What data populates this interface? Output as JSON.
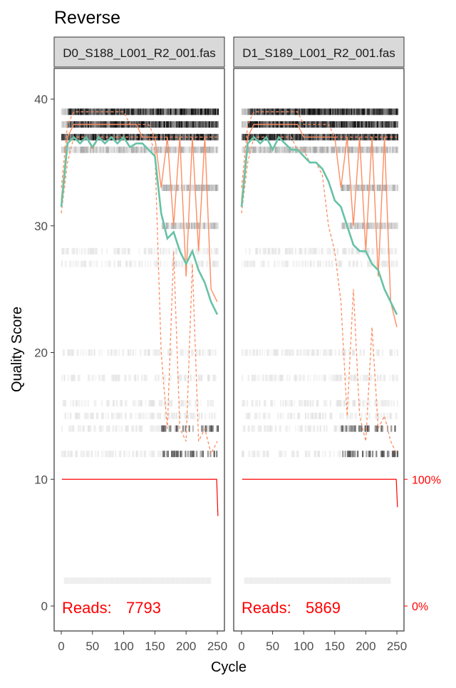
{
  "chart_data": {
    "type": "line",
    "title": "Reverse",
    "xlabel": "Cycle",
    "ylabel": "Quality Score",
    "xlim": [
      -5,
      256
    ],
    "ylim": [
      -1.5,
      43
    ],
    "x_ticks": [
      "0",
      "50",
      "100",
      "150",
      "200",
      "250"
    ],
    "y_ticks": [
      "0",
      "10",
      "20",
      "30",
      "40"
    ],
    "right_axis_ticks": [
      "0%",
      "100%"
    ],
    "grid": false,
    "colors": {
      "mean": "#66c2a5",
      "quartiles": "#fc8d62",
      "coverage": "#ff0000",
      "reads_text": "#ff0000"
    },
    "x": [
      0,
      10,
      20,
      30,
      40,
      50,
      60,
      70,
      80,
      90,
      100,
      110,
      120,
      130,
      140,
      150,
      160,
      170,
      180,
      190,
      200,
      210,
      220,
      230,
      240,
      250
    ],
    "panels": [
      {
        "strip": "D0_S188_L001_R2_001.fas",
        "reads_label": "Reads:",
        "reads": "7793",
        "coverage_end_fraction": 0.71,
        "series": [
          {
            "name": "mean",
            "values": [
              31.5,
              36.5,
              37,
              36.5,
              37,
              36.2,
              37,
              36.5,
              37,
              36.5,
              37,
              36.2,
              36.5,
              36.5,
              36,
              35.5,
              31,
              29,
              29.5,
              28,
              27,
              28,
              26.5,
              25.5,
              24,
              23
            ]
          },
          {
            "name": "median",
            "values": [
              32,
              37,
              38,
              38,
              38,
              38,
              38,
              38,
              38,
              38,
              38,
              38,
              38,
              37,
              37,
              37,
              33,
              37,
              30,
              37,
              26,
              37,
              28,
              37,
              25,
              24
            ]
          },
          {
            "name": "q25",
            "values": [
              31,
              35,
              37,
              37,
              37,
              36,
              37,
              37,
              37,
              37,
              37,
              37,
              37,
              37,
              37,
              36,
              20,
              14,
              28,
              14,
              13,
              27,
              13,
              14,
              12,
              13
            ]
          },
          {
            "name": "q75",
            "values": [
              33,
              38,
              39,
              39,
              39,
              39,
              39,
              39,
              39,
              39,
              39,
              38,
              38,
              38,
              38,
              37,
              37,
              37,
              37,
              37,
              37,
              37,
              37,
              37,
              37,
              37
            ]
          }
        ]
      },
      {
        "strip": "D1_S189_L001_R2_001.fas",
        "reads_label": "Reads:",
        "reads": "5869",
        "coverage_end_fraction": 0.78,
        "series": [
          {
            "name": "mean",
            "values": [
              31.5,
              36.5,
              37,
              36.5,
              37,
              36,
              37,
              36.5,
              36,
              36,
              35.5,
              35,
              35,
              34.5,
              33.5,
              32,
              31.5,
              30,
              28.5,
              28,
              28,
              27,
              26.5,
              25,
              24,
              23
            ]
          },
          {
            "name": "median",
            "values": [
              32,
              37,
              38,
              38,
              38,
              38,
              38,
              38,
              38,
              38,
              37,
              37,
              37,
              37,
              37,
              37,
              33,
              37,
              30,
              37,
              28,
              37,
              26,
              37,
              24,
              22
            ]
          },
          {
            "name": "q25",
            "values": [
              31,
              35,
              37,
              37,
              37,
              36,
              37,
              37,
              37,
              36,
              36,
              35,
              35,
              34,
              30,
              28,
              24,
              15,
              25,
              15,
              13,
              22,
              14,
              15,
              13,
              12
            ]
          },
          {
            "name": "q75",
            "values": [
              33,
              38,
              39,
              39,
              39,
              39,
              39,
              39,
              39,
              39,
              38,
              38,
              38,
              38,
              38,
              37,
              37,
              37,
              37,
              37,
              37,
              37,
              37,
              37,
              37,
              37
            ]
          }
        ]
      }
    ]
  }
}
